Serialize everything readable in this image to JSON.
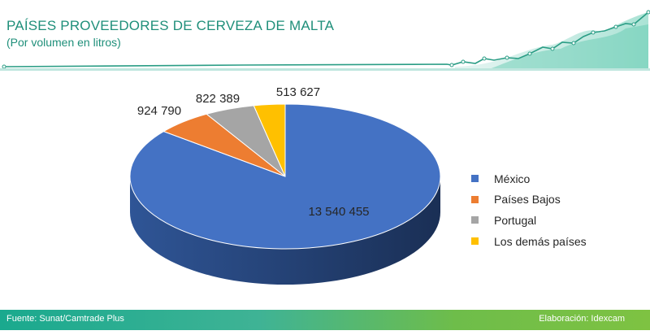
{
  "header": {
    "title": "PAÍSES PROVEEDORES DE CERVEZA DE MALTA",
    "subtitle": "(Por volumen en litros)"
  },
  "chart_data": {
    "type": "pie",
    "categories": [
      "México",
      "Países Bajos",
      "Portugal",
      "Los demás países"
    ],
    "values": [
      13540455,
      924790,
      822389,
      513627
    ],
    "data_labels": [
      "13 540 455",
      "924 790",
      "822 389",
      "513 627"
    ],
    "colors": [
      "#4472c4",
      "#ed7d31",
      "#a5a5a5",
      "#ffc000"
    ],
    "legend_position": "right"
  },
  "footer": {
    "source": "Fuente: Sunat/Camtrade Plus",
    "credit": "Elaboración:  Idexcam"
  },
  "colors": {
    "accent": "#1f8f7a",
    "footer_start": "#1aa98e",
    "footer_end": "#7ec242"
  }
}
